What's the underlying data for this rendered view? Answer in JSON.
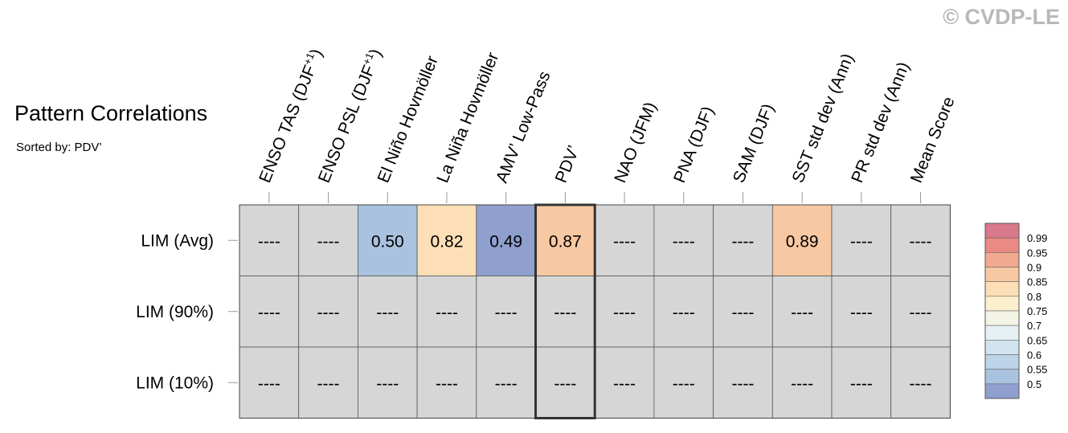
{
  "copyright": "© CVDP-LE",
  "chart_data": {
    "type": "heatmap",
    "title": "Pattern Correlations",
    "subtitle": "Sorted by: PDV’",
    "columns": [
      {
        "label": "ENSO TAS (DJF",
        "sup": "+1",
        "suffix": ")"
      },
      {
        "label": "ENSO PSL (DJF",
        "sup": "+1",
        "suffix": ")"
      },
      {
        "label": "El Niño Hovmöller",
        "sup": "",
        "suffix": ""
      },
      {
        "label": "La Niña Hovmöller",
        "sup": "",
        "suffix": ""
      },
      {
        "label": "AMV’ Low-Pass",
        "sup": "",
        "suffix": ""
      },
      {
        "label": "PDV’",
        "sup": "",
        "suffix": ""
      },
      {
        "label": "NAO (JFM)",
        "sup": "",
        "suffix": ""
      },
      {
        "label": "PNA (DJF)",
        "sup": "",
        "suffix": ""
      },
      {
        "label": "SAM (DJF)",
        "sup": "",
        "suffix": ""
      },
      {
        "label": "SST std dev (Ann)",
        "sup": "",
        "suffix": ""
      },
      {
        "label": "PR std dev (Ann)",
        "sup": "",
        "suffix": ""
      },
      {
        "label": "Mean Score",
        "sup": "",
        "suffix": ""
      }
    ],
    "rows": [
      "LIM (Avg)",
      "LIM (90%)",
      "LIM (10%)"
    ],
    "values": [
      [
        null,
        null,
        0.5,
        0.82,
        0.49,
        0.87,
        null,
        null,
        null,
        0.89,
        null,
        null
      ],
      [
        null,
        null,
        null,
        null,
        null,
        null,
        null,
        null,
        null,
        null,
        null,
        null
      ],
      [
        null,
        null,
        null,
        null,
        null,
        null,
        null,
        null,
        null,
        null,
        null,
        null
      ]
    ],
    "missing_label": "----",
    "highlight_column": 5,
    "colorbar": {
      "ticks": [
        "0.99",
        "0.95",
        "0.9",
        "0.85",
        "0.8",
        "0.75",
        "0.7",
        "0.65",
        "0.6",
        "0.55",
        "0.5"
      ],
      "levels": [
        {
          "min": 0.45,
          "max": 0.5,
          "color": "#8f9fce"
        },
        {
          "min": 0.5,
          "max": 0.55,
          "color": "#a9c2df"
        },
        {
          "min": 0.55,
          "max": 0.6,
          "color": "#bcd3e8"
        },
        {
          "min": 0.6,
          "max": 0.65,
          "color": "#d2e4f0"
        },
        {
          "min": 0.65,
          "max": 0.7,
          "color": "#e5f1f4"
        },
        {
          "min": 0.7,
          "max": 0.75,
          "color": "#f3f4e6"
        },
        {
          "min": 0.75,
          "max": 0.8,
          "color": "#fbefcd"
        },
        {
          "min": 0.8,
          "max": 0.85,
          "color": "#fcdfb6"
        },
        {
          "min": 0.85,
          "max": 0.9,
          "color": "#f8c8a2"
        },
        {
          "min": 0.9,
          "max": 0.95,
          "color": "#f1a98f"
        },
        {
          "min": 0.95,
          "max": 0.99,
          "color": "#e98a84"
        },
        {
          "min": 0.99,
          "max": 1.0,
          "color": "#d9798c"
        }
      ],
      "missing_color": "#d6d6d6"
    }
  }
}
